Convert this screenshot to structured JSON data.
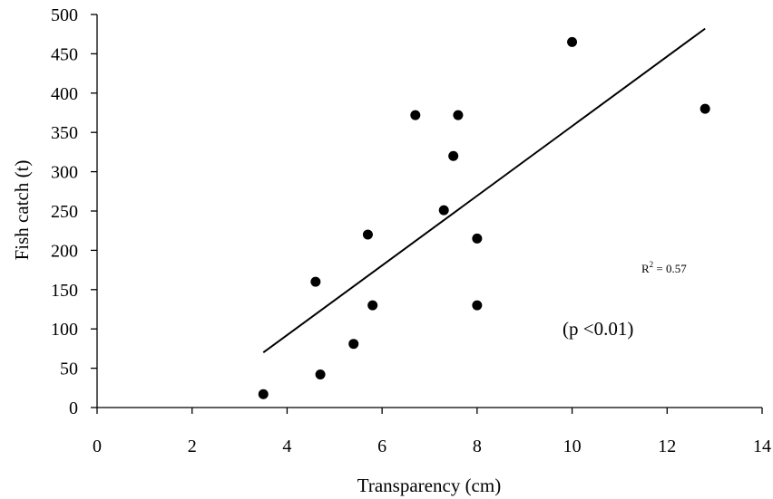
{
  "chart_data": {
    "type": "scatter",
    "title": "",
    "xlabel": "Transparency (cm)",
    "ylabel": "Fish catch (t)",
    "xlim": [
      0,
      14
    ],
    "ylim": [
      0,
      500
    ],
    "x_ticks": [
      0,
      2,
      4,
      6,
      8,
      10,
      12,
      14
    ],
    "y_ticks": [
      0,
      50,
      100,
      150,
      200,
      250,
      300,
      350,
      400,
      450,
      500
    ],
    "grid": false,
    "legend": "none",
    "series": [
      {
        "x": [
          3.5,
          4.6,
          4.7,
          5.4,
          5.7,
          5.8,
          6.7,
          7.3,
          7.5,
          7.6,
          8.0,
          8.0,
          10.0,
          12.8
        ],
        "y": [
          17,
          160,
          42,
          81,
          220,
          130,
          372,
          251,
          320,
          372,
          215,
          130,
          465,
          380
        ],
        "color": "#000000"
      }
    ],
    "trendline": {
      "x": [
        3.5,
        12.8
      ],
      "y": [
        70,
        482
      ],
      "color": "#000000"
    },
    "annotations": {
      "r_squared_prefix": "R",
      "r_squared_exponent": "2",
      "r_squared_value": " = 0.57",
      "p_value": "(p <0.01)"
    }
  }
}
